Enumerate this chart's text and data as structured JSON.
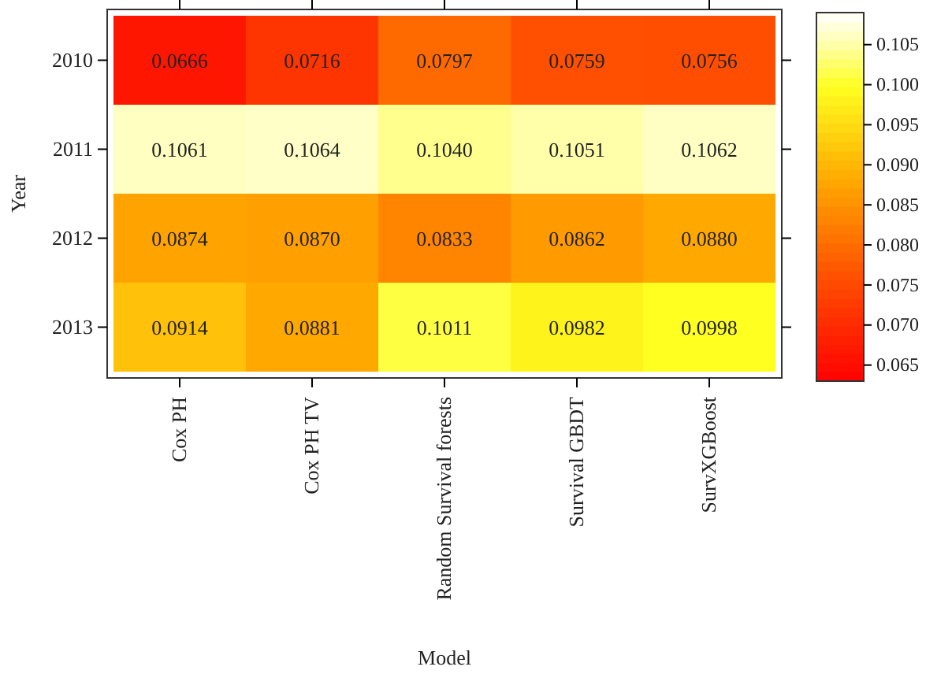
{
  "chart_data": {
    "type": "heatmap",
    "xlabel": "Model",
    "ylabel": "Year",
    "categories": [
      "Cox PH",
      "Cox PH TV",
      "Random Survival forests",
      "Survival GBDT",
      "SurvXGBoost"
    ],
    "y_categories": [
      "2010",
      "2011",
      "2012",
      "2013"
    ],
    "cells": [
      [
        0.0666,
        0.0716,
        0.0797,
        0.0759,
        0.0756
      ],
      [
        0.1061,
        0.1064,
        0.104,
        0.1051,
        0.1062
      ],
      [
        0.0874,
        0.087,
        0.0833,
        0.0862,
        0.088
      ],
      [
        0.0914,
        0.0881,
        0.1011,
        0.0982,
        0.0998
      ]
    ],
    "cell_labels": [
      [
        "0.0666",
        "0.0716",
        "0.0797",
        "0.0759",
        "0.0756"
      ],
      [
        "0.1061",
        "0.1064",
        "0.1040",
        "0.1051",
        "0.1062"
      ],
      [
        "0.0874",
        "0.0870",
        "0.0833",
        "0.0862",
        "0.0880"
      ],
      [
        "0.0914",
        "0.0881",
        "0.1011",
        "0.0982",
        "0.0998"
      ]
    ],
    "clim": [
      0.063,
      0.109
    ],
    "cticks": [
      {
        "value": 0.065,
        "label": "0.065"
      },
      {
        "value": 0.07,
        "label": "0.070"
      },
      {
        "value": 0.075,
        "label": "0.075"
      },
      {
        "value": 0.08,
        "label": "0.080"
      },
      {
        "value": 0.085,
        "label": "0.085"
      },
      {
        "value": 0.09,
        "label": "0.090"
      },
      {
        "value": 0.095,
        "label": "0.095"
      },
      {
        "value": 0.1,
        "label": "0.100"
      },
      {
        "value": 0.105,
        "label": "0.105"
      }
    ]
  }
}
